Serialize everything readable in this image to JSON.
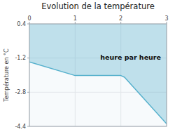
{
  "chart_data": {
    "type": "area",
    "title": "Evolution de la température",
    "y_label": "Température en °C",
    "x": [
      0,
      1,
      2,
      2.08,
      3
    ],
    "values": [
      -1.38,
      -2.02,
      -2.02,
      -2.1,
      -4.28
    ],
    "color": "#55b0cc",
    "xlim": [
      0,
      3
    ],
    "ylim": [
      -4.4,
      0.4
    ],
    "xticks": [
      0,
      1,
      2,
      3
    ],
    "yticks": [
      0.4,
      -1.2,
      -2.8,
      -4.4
    ],
    "grid": true,
    "annotations": [
      {
        "text": "heure par heure",
        "x": 1.55,
        "y": -1.05
      }
    ]
  }
}
